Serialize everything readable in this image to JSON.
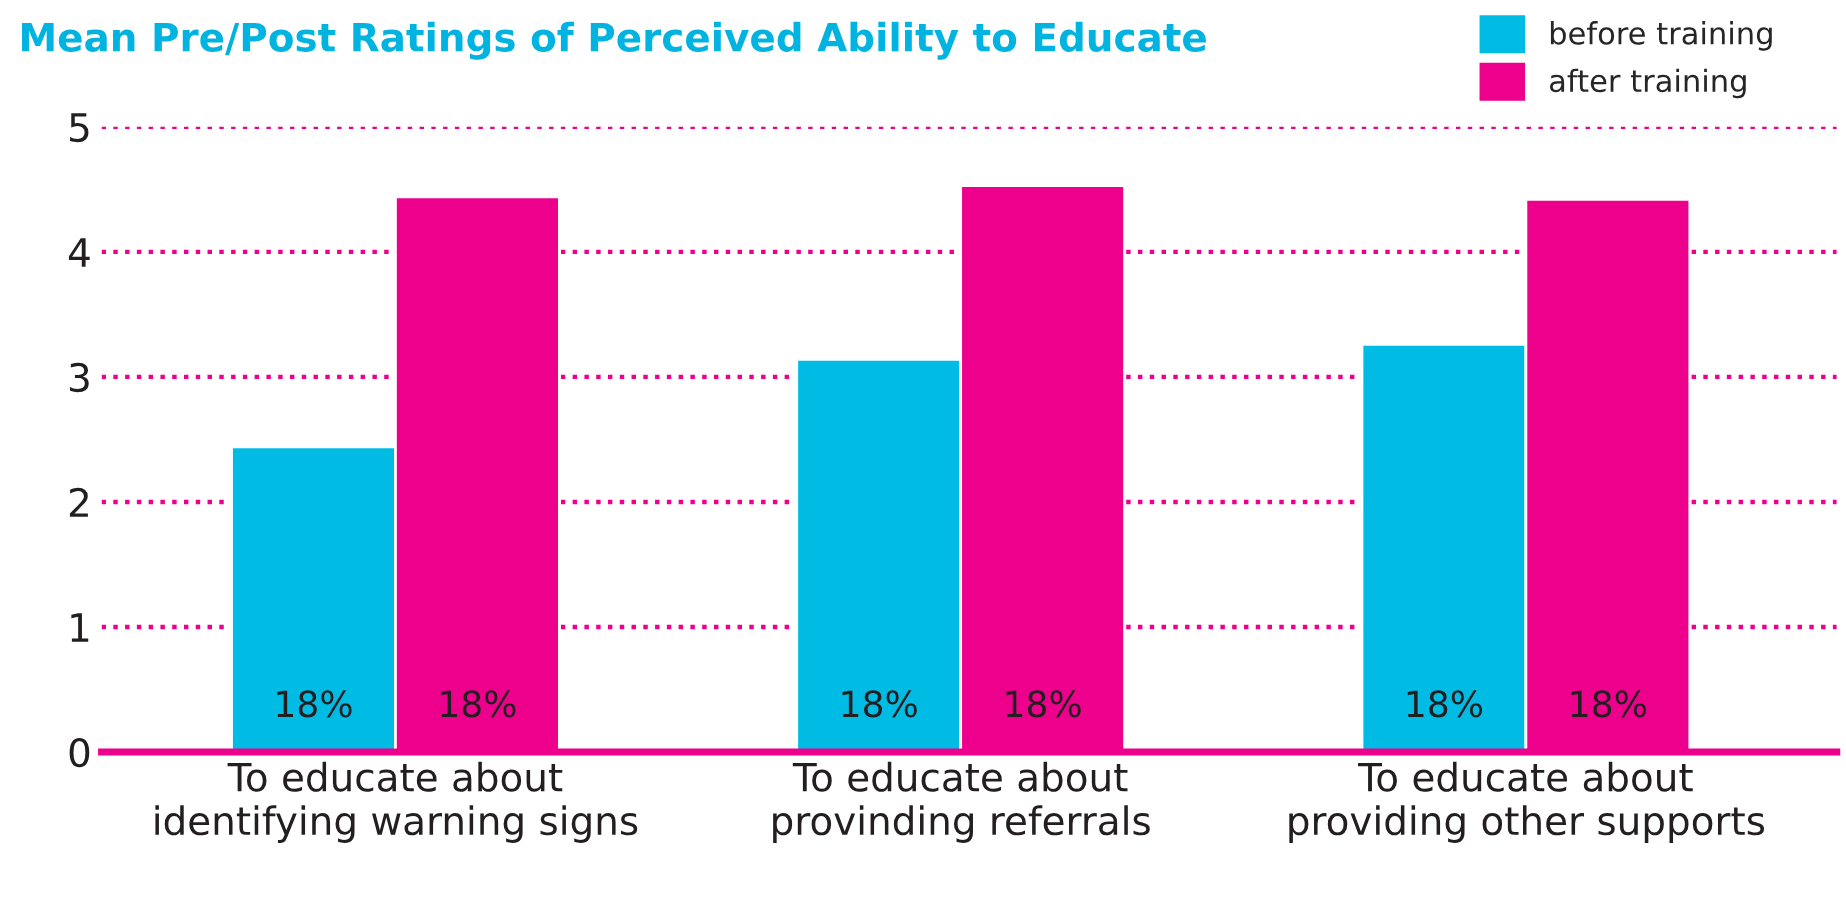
{
  "chart_data": {
    "type": "bar",
    "title": "Mean Pre/Post Ratings of Perceived Ability to Educate",
    "categories": [
      "To educate about\nidentifying warning signs",
      "To educate about\nprovinding referrals",
      "To educate about\nproviding other supports"
    ],
    "series": [
      {
        "name": "before training",
        "color": "#00bce4",
        "values": [
          2.44,
          3.14,
          3.26
        ]
      },
      {
        "name": "after training",
        "color": "#ec008c",
        "values": [
          4.44,
          4.53,
          4.42
        ]
      }
    ],
    "annotations": [
      "18%",
      "18%",
      "18%",
      "18%",
      "18%",
      "18%"
    ],
    "ylim": [
      0,
      5
    ],
    "yticks": [
      0,
      1,
      2,
      3,
      4,
      5
    ],
    "grid": "y",
    "line_style": "dotted",
    "legend": "top right"
  }
}
